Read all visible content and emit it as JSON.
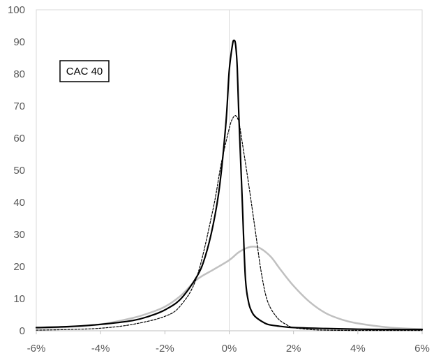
{
  "chart_data": {
    "type": "line",
    "title": "",
    "xlabel": "",
    "ylabel": "",
    "xlim": [
      -6,
      6
    ],
    "ylim": [
      0,
      100
    ],
    "x_ticks": [
      -6,
      -4,
      -2,
      0,
      2,
      4,
      6
    ],
    "x_tick_labels": [
      "-6%",
      "-4%",
      "-2%",
      "0%",
      "2%",
      "4%",
      "6%"
    ],
    "y_ticks": [
      0,
      10,
      20,
      30,
      40,
      50,
      60,
      70,
      80,
      90,
      100
    ],
    "y_tick_labels": [
      "0",
      "10",
      "20",
      "30",
      "40",
      "50",
      "60",
      "70",
      "80",
      "90",
      "100"
    ],
    "grid": false,
    "legend": "none",
    "annotation": "CAC 40",
    "series": [
      {
        "style": "solid",
        "color": "#000000",
        "x": [
          -6,
          -5,
          -4,
          -3,
          -2.5,
          -2,
          -1.5,
          -1,
          -0.75,
          -0.5,
          -0.3,
          -0.1,
          0,
          0.1,
          0.15,
          0.2,
          0.25,
          0.3,
          0.4,
          0.5,
          0.6,
          0.7,
          0.8,
          1,
          1.2,
          1.5,
          2,
          3,
          4,
          5,
          6
        ],
        "y": [
          1,
          1.3,
          2,
          3.2,
          4.5,
          6.5,
          10,
          17,
          23,
          33,
          45,
          65,
          81,
          89,
          90.5,
          89,
          82,
          67,
          42,
          17,
          9,
          6,
          4.5,
          3,
          2,
          1.5,
          1,
          0.7,
          0.5,
          0.4,
          0.4
        ]
      },
      {
        "style": "dashed",
        "color": "#000000",
        "x": [
          -6,
          -5,
          -4,
          -3,
          -2,
          -1.5,
          -1,
          -0.5,
          -0.25,
          0,
          0.1,
          0.2,
          0.3,
          0.4,
          0.6,
          0.8,
          1,
          1.2,
          1.5,
          1.8,
          2,
          2.5,
          3,
          4,
          6
        ],
        "y": [
          0.2,
          0.4,
          0.8,
          2,
          4.5,
          8,
          17,
          38,
          52,
          63,
          66,
          67,
          65,
          59,
          46,
          32,
          18,
          9,
          4,
          1.8,
          1,
          0.4,
          0.2,
          0.1,
          0.1
        ]
      },
      {
        "style": "solid",
        "color": "#c0c0c0",
        "x": [
          -6,
          -5,
          -4,
          -3,
          -2.5,
          -2,
          -1.5,
          -1,
          -0.5,
          0,
          0.3,
          0.6,
          0.8,
          1,
          1.3,
          1.6,
          2,
          2.5,
          3,
          3.5,
          4,
          5,
          6
        ],
        "y": [
          0.8,
          1.2,
          2,
          4,
          5.5,
          7.5,
          11,
          16,
          19,
          22,
          24.5,
          26,
          26.2,
          25.5,
          23,
          19,
          14,
          9,
          5.5,
          3.5,
          2.3,
          1,
          0.5
        ]
      }
    ]
  }
}
